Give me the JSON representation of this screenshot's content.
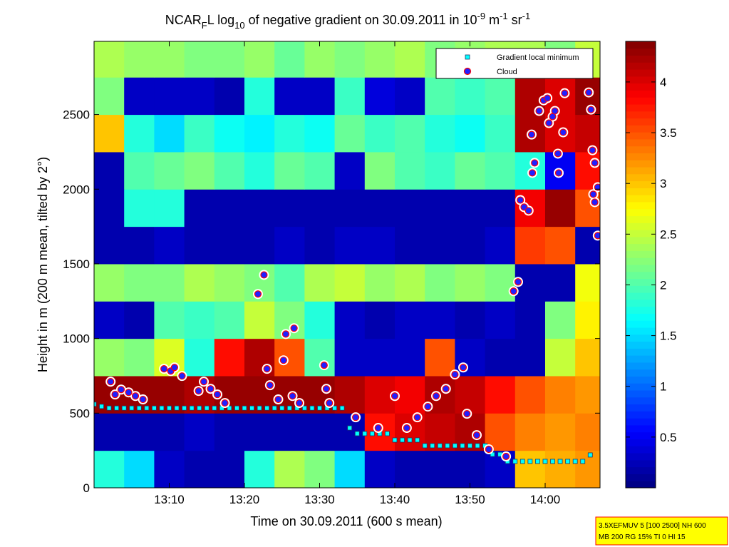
{
  "chart_data": {
    "type": "heatmap-scatter",
    "title": [
      {
        "text": "NCAR"
      },
      {
        "text": "F",
        "shift": "sub"
      },
      {
        "text": "L log"
      },
      {
        "text": "10",
        "shift": "sub"
      },
      {
        "text": " of negative gradient on 30.09.2011 in 10"
      },
      {
        "text": "-9",
        "shift": "super"
      },
      {
        "text": " m"
      },
      {
        "text": "-1",
        "shift": "super"
      },
      {
        "text": " sr"
      },
      {
        "text": "-1",
        "shift": "super"
      }
    ],
    "x_label": "Time on 30.09.2011 (600 s mean)",
    "y_label": "Height in m (200 m mean, tilted by 2°)",
    "xlim": [
      780,
      847.3
    ],
    "xticks": [
      {
        "value": 790,
        "label": "13:10"
      },
      {
        "value": 800,
        "label": "13:20"
      },
      {
        "value": 810,
        "label": "13:30"
      },
      {
        "value": 820,
        "label": "13:40"
      },
      {
        "value": 830,
        "label": "13:50"
      },
      {
        "value": 840,
        "label": "14:00"
      }
    ],
    "ylim": [
      0,
      2990
    ],
    "yticks": [
      0,
      500,
      1000,
      1500,
      2000,
      2500
    ],
    "clim": [
      0,
      4.4
    ],
    "cticks": [
      0.5,
      1,
      1.5,
      2,
      2.5,
      3,
      3.5,
      4
    ],
    "colormap": "jet",
    "x_bins": [
      780,
      784,
      788,
      792,
      796,
      800,
      804,
      808,
      812,
      816,
      820,
      824,
      828,
      832,
      836,
      840,
      844,
      847.3
    ],
    "y_bins": [
      0,
      250,
      500,
      750,
      1000,
      1250,
      1500,
      1750,
      2000,
      2250,
      2500,
      2750,
      2990
    ],
    "z": [
      [
        1.8,
        1.5,
        0.3,
        0.2,
        0.2,
        1.8,
        2.4,
        2.2,
        1.5,
        0.3,
        0.2,
        0.2,
        0.2,
        0.3,
        3.0,
        3.1,
        3.2
      ],
      [
        0.2,
        0.2,
        0.2,
        0.3,
        0.2,
        0.2,
        0.2,
        0.2,
        0.2,
        3.8,
        4.0,
        4.1,
        4.2,
        3.5,
        3.3,
        3.2,
        3.3
      ],
      [
        4.3,
        4.3,
        4.3,
        4.2,
        4.3,
        4.3,
        4.3,
        4.3,
        4.2,
        4.0,
        3.9,
        4.2,
        4.1,
        3.8,
        3.5,
        3.3,
        3.2
      ],
      [
        2.3,
        2.2,
        2.6,
        1.8,
        3.8,
        4.2,
        3.5,
        2.0,
        0.3,
        0.3,
        0.3,
        3.5,
        0.3,
        0.2,
        0.2,
        2.5,
        3.0
      ],
      [
        0.3,
        0.2,
        2.0,
        1.9,
        2.0,
        2.5,
        2.2,
        1.8,
        0.3,
        0.2,
        0.3,
        0.3,
        0.2,
        0.3,
        0.2,
        2.2,
        2.8
      ],
      [
        2.3,
        2.2,
        2.2,
        2.4,
        2.3,
        2.2,
        2.0,
        2.4,
        2.5,
        2.3,
        2.4,
        2.2,
        2.3,
        2.2,
        0.2,
        0.2,
        2.7
      ],
      [
        0.2,
        0.2,
        0.3,
        0.2,
        0.2,
        0.2,
        0.3,
        0.2,
        0.3,
        0.3,
        0.2,
        0.2,
        0.2,
        0.3,
        3.6,
        3.5,
        0.2
      ],
      [
        0.2,
        1.8,
        1.8,
        0.2,
        0.2,
        0.2,
        0.2,
        0.2,
        0.2,
        0.2,
        0.2,
        0.2,
        0.2,
        0.2,
        3.9,
        4.3,
        3.5
      ],
      [
        0.2,
        2.0,
        2.1,
        2.2,
        2.0,
        1.8,
        2.1,
        2.0,
        0.3,
        2.2,
        2.0,
        1.9,
        2.1,
        2.0,
        1.8,
        0.5,
        3.8
      ],
      [
        3.0,
        1.8,
        1.5,
        1.9,
        1.7,
        1.6,
        1.8,
        1.7,
        2.1,
        1.9,
        2.0,
        1.8,
        1.7,
        1.9,
        4.2,
        4.0,
        4.1
      ],
      [
        2.2,
        0.3,
        0.3,
        0.3,
        0.2,
        1.8,
        0.3,
        0.3,
        1.9,
        0.4,
        0.3,
        2.0,
        1.9,
        2.0,
        4.2,
        4.0,
        4.3
      ],
      [
        2.4,
        2.3,
        2.3,
        2.2,
        2.2,
        2.3,
        2.1,
        2.3,
        2.2,
        2.3,
        2.4,
        2.2,
        2.3,
        2.4,
        2.4,
        2.2,
        2.5
      ]
    ],
    "series": [
      {
        "name": "Gradient local minimum",
        "color": "#00ffff",
        "edgecolor": "#1a3a6a",
        "marker": "square",
        "x": [
          780,
          781,
          782,
          783,
          784,
          785,
          786,
          787,
          788,
          789,
          790,
          791,
          792,
          793,
          794,
          795,
          796,
          797,
          798,
          799,
          800,
          801,
          802,
          803,
          804,
          805,
          806,
          807,
          808,
          809,
          810,
          811,
          812,
          813,
          814,
          815,
          816,
          817,
          818,
          819,
          820,
          821,
          822,
          823,
          824,
          825,
          826,
          827,
          828,
          829,
          830,
          831,
          832,
          833,
          834,
          835,
          836,
          837,
          838,
          839,
          840,
          841,
          842,
          843,
          844,
          845,
          846
        ],
        "values": [
          560,
          545,
          534,
          534,
          534,
          534,
          534,
          534,
          534,
          534,
          534,
          534,
          534,
          534,
          534,
          534,
          534,
          534,
          534,
          534,
          534,
          534,
          534,
          534,
          534,
          534,
          534,
          534,
          534,
          534,
          534,
          534,
          534,
          534,
          401,
          363,
          363,
          363,
          363,
          363,
          320,
          320,
          320,
          320,
          282,
          282,
          282,
          282,
          282,
          282,
          282,
          282,
          282,
          224,
          224,
          177,
          177,
          177,
          177,
          177,
          177,
          177,
          177,
          177,
          177,
          177,
          220
        ]
      },
      {
        "name": "Cloud",
        "color": "#2020ff",
        "edgecolor": "#ff0000",
        "marker": "circle",
        "x": [
          782.2,
          782.8,
          783.6,
          784.6,
          785.5,
          786.5,
          789.3,
          790.2,
          790.7,
          791.7,
          793.9,
          794.6,
          795.5,
          796.4,
          797.4,
          801.8,
          802.6,
          803,
          803.4,
          804.5,
          805.2,
          805.5,
          806.6,
          806.4,
          807.3,
          810.6,
          810.9,
          811.3,
          814.8,
          817.8,
          820,
          821.6,
          823,
          824.4,
          825.5,
          826.8,
          828,
          829.1,
          829.6,
          830.9,
          832.5,
          834.8,
          835.8,
          836.4,
          836.7,
          837.2,
          837.8,
          838.2,
          838.6,
          838.3,
          839.2,
          839.8,
          840.3,
          840.5,
          841,
          841.3,
          841.8,
          841.7,
          842.4,
          842.6,
          845.8,
          846.1,
          846.3,
          846.6,
          846.4,
          846.6,
          847,
          847
        ],
        "values": [
          711,
          625,
          658,
          639,
          615,
          592,
          797,
          782,
          806,
          749,
          649,
          711,
          663,
          625,
          568,
          1298,
          1426,
          797,
          687,
          592,
          854,
          1030,
          1069,
          615,
          568,
          821,
          663,
          568,
          472,
          401,
          615,
          401,
          472,
          544,
          615,
          663,
          759,
          806,
          496,
          353,
          258,
          210,
          1317,
          1379,
          1927,
          1880,
          1856,
          2366,
          2176,
          2109,
          2524,
          2595,
          2610,
          2443,
          2486,
          2524,
          2109,
          2238,
          2381,
          2643,
          2648,
          2533,
          2261,
          2176,
          1966,
          1913,
          2013,
          1689
        ]
      }
    ],
    "legend": "upper right",
    "annotation": [
      "3.5XEFMUV 5 [100 2500] NH 600",
      "MB 200 RG 15% TI 0 HI 15"
    ]
  }
}
